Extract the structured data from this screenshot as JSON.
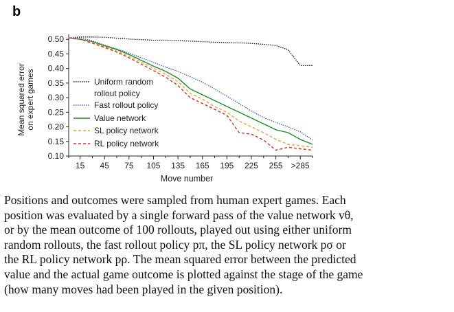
{
  "panel_label": "b",
  "chart_data": {
    "type": "line",
    "xlabel": "Move number",
    "ylabel_lines": [
      "Mean squared error",
      "on expert games"
    ],
    "x_tick_labels": [
      "15",
      "45",
      "75",
      "105",
      "135",
      "165",
      "195",
      "225",
      "255",
      ">285"
    ],
    "x": [
      1,
      15,
      30,
      45,
      60,
      75,
      90,
      105,
      120,
      135,
      150,
      165,
      180,
      195,
      210,
      225,
      240,
      255,
      270,
      285,
      300
    ],
    "xlim": [
      1,
      300
    ],
    "ylim": [
      0.1,
      0.51
    ],
    "y_ticks": [
      0.1,
      0.15,
      0.2,
      0.25,
      0.3,
      0.35,
      0.4,
      0.45,
      0.5
    ],
    "y_tick_labels": [
      "0.10",
      "0.15",
      "0.20",
      "0.25",
      "0.30",
      "0.35",
      "0.40",
      "0.45",
      "0.50"
    ],
    "series": [
      {
        "name_lines": [
          "Uniform random",
          "rollout policy"
        ],
        "color": "#111111",
        "dash": "1.5,1.5",
        "values": [
          0.505,
          0.508,
          0.508,
          0.507,
          0.504,
          0.501,
          0.499,
          0.497,
          0.497,
          0.496,
          0.494,
          0.492,
          0.49,
          0.489,
          0.488,
          0.486,
          0.483,
          0.479,
          0.464,
          0.41,
          0.41
        ]
      },
      {
        "name_lines": [
          "Fast rollout policy"
        ],
        "color": "#3a5bd0",
        "dash": "1.5,1.5",
        "values": [
          0.505,
          0.505,
          0.495,
          0.48,
          0.467,
          0.453,
          0.437,
          0.421,
          0.405,
          0.39,
          0.372,
          0.353,
          0.33,
          0.305,
          0.28,
          0.254,
          0.232,
          0.215,
          0.2,
          0.183,
          0.155
        ]
      },
      {
        "name_lines": [
          "Value network"
        ],
        "color": "#1b8a2e",
        "dash": "",
        "values": [
          0.505,
          0.5,
          0.492,
          0.478,
          0.465,
          0.448,
          0.428,
          0.408,
          0.39,
          0.367,
          0.33,
          0.31,
          0.29,
          0.27,
          0.25,
          0.23,
          0.21,
          0.19,
          0.18,
          0.157,
          0.14
        ]
      },
      {
        "name_lines": [
          "SL policy network"
        ],
        "color": "#f2a02c",
        "dash": "4,3",
        "values": [
          0.505,
          0.5,
          0.49,
          0.475,
          0.46,
          0.442,
          0.422,
          0.401,
          0.38,
          0.355,
          0.315,
          0.295,
          0.27,
          0.25,
          0.22,
          0.2,
          0.18,
          0.157,
          0.14,
          0.135,
          0.13
        ]
      },
      {
        "name_lines": [
          "RL policy network"
        ],
        "color": "#e02a2a",
        "dash": "4,3",
        "values": [
          0.505,
          0.5,
          0.487,
          0.472,
          0.456,
          0.437,
          0.415,
          0.393,
          0.37,
          0.342,
          0.3,
          0.28,
          0.26,
          0.24,
          0.18,
          0.175,
          0.155,
          0.12,
          0.13,
          0.125,
          0.12
        ]
      }
    ]
  },
  "caption": {
    "lines": [
      "Positions and outcomes were sampled from human expert games. Each",
      "position was evaluated by a single forward pass of the value network vθ,",
      "or by the mean outcome of 100 rollouts, played out using either uniform",
      "random rollouts, the fast rollout policy pπ, the SL policy network pσ or",
      "the RL policy network pρ. The mean squared error between the predicted",
      "value and the actual game outcome is plotted against the stage of the game",
      "(how many moves had been played in the given position)."
    ]
  }
}
